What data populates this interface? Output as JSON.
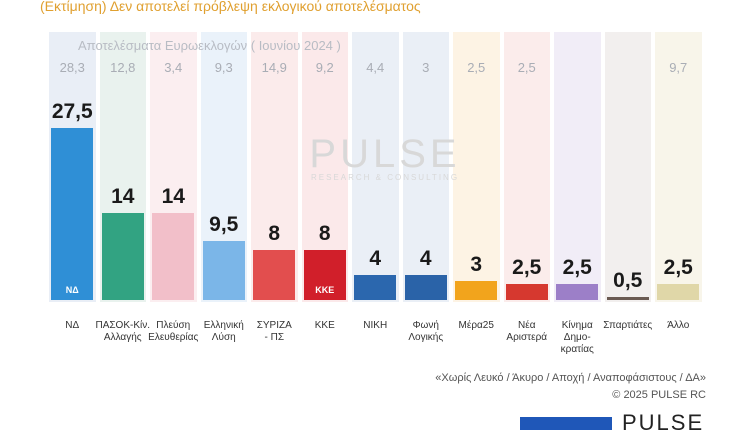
{
  "subtitle": "(Εκτίμηση)   Δεν αποτελεί πρόβλεψη εκλογικού αποτελέσματος",
  "euro_title": "Αποτελέσματα Ευρωεκλογών   ( Ιουνίου 2024 )",
  "watermark": {
    "main": "PULSE",
    "sub": "RESEARCH & CONSULTING"
  },
  "footnote": "«Χωρίς Λευκό / Άκυρο / Αποχή / Αναποφάσιστους / ΔΑ»",
  "copyright": "©  2025  PULSE RC",
  "brand": "PULSE",
  "chart_data": {
    "type": "bar",
    "categories": [
      "ΝΔ",
      "ΠΑΣΟΚ-Κίν. Αλλαγής",
      "Πλεύση Ελευθερίας",
      "Ελληνική Λύση",
      "ΣΥΡΙΖΑ - ΠΣ",
      "ΚΚΕ",
      "ΝΙΚΗ",
      "Φωνή Λογικής",
      "Μέρα25",
      "Νέα Αριστερά",
      "Κίνημα Δημοκρατίας",
      "Σπαρτιάτες",
      "Άλλο"
    ],
    "category_lines": [
      [
        "ΝΔ"
      ],
      [
        "ΠΑΣΟΚ-Κίν.",
        "Αλλαγής"
      ],
      [
        "Πλεύση",
        "Ελευθερίας"
      ],
      [
        "Ελληνική",
        "Λύση"
      ],
      [
        "ΣΥΡΙΖΑ",
        "- ΠΣ"
      ],
      [
        "ΚΚΕ"
      ],
      [
        "ΝΙΚΗ"
      ],
      [
        "Φωνή",
        "Λογικής"
      ],
      [
        "Μέρα25"
      ],
      [
        "Νέα",
        "Αριστερά"
      ],
      [
        "Κίνημα",
        "Δημο-",
        "κρατίας"
      ],
      [
        "Σπαρτιάτες"
      ],
      [
        "Άλλο"
      ]
    ],
    "values": [
      27.5,
      14,
      14,
      9.5,
      8,
      8,
      4,
      4,
      3,
      2.5,
      2.5,
      0.5,
      2.5
    ],
    "value_labels": [
      "27,5",
      "14",
      "14",
      "9,5",
      "8",
      "8",
      "4",
      "4",
      "3",
      "2,5",
      "2,5",
      "0,5",
      "2,5"
    ],
    "euro_values": [
      "28,3",
      "12,8",
      "3,4",
      "9,3",
      "14,9",
      "9,2",
      "4,4",
      "3",
      "2,5",
      "2,5",
      "",
      "",
      "9,7"
    ],
    "colors": [
      "#2f8fd6",
      "#32a382",
      "#f2bfc9",
      "#7bb6e8",
      "#e24e4e",
      "#d11f2a",
      "#2b67ae",
      "#2a63a8",
      "#f2a41c",
      "#d6382f",
      "#9c7fc8",
      "#6a5a52",
      "#e0d7a8"
    ],
    "column_backgrounds": [
      "#e9eef6",
      "#e9f2ee",
      "#fbeef0",
      "#eaf2fa",
      "#fbebeb",
      "#fbe9ea",
      "#eaeff6",
      "#eaeff6",
      "#fdf3e4",
      "#fbeceb",
      "#f1edf7",
      "#f2efee",
      "#f8f5ea"
    ],
    "logos": [
      {
        "name": "nd-logo",
        "text": "ΝΔ",
        "color": "#ffffff"
      },
      {
        "name": "pasok-logo",
        "text": "",
        "color": "#1d7a3f"
      },
      {
        "name": "plefsi-logo",
        "text": "",
        "color": "#7a2f8a"
      },
      {
        "name": "elliniki-lysi-logo",
        "text": "",
        "color": "#2c6fbf"
      },
      {
        "name": "syriza-logo",
        "text": "",
        "color": "#ffffff"
      },
      {
        "name": "kke-logo",
        "text": "ΚΚΕ",
        "color": "#ffffff"
      },
      {
        "name": "niki-logo",
        "text": "",
        "color": "#ffffff"
      },
      {
        "name": "foni-logikis-logo",
        "text": "",
        "color": "#ffffff"
      },
      {
        "name": "mera25-logo",
        "text": "",
        "color": "#c0361f"
      },
      {
        "name": "nea-aristera-logo",
        "text": "",
        "color": "#ffffff"
      },
      {
        "name": "kinima-dimokratias-logo",
        "text": "",
        "color": "#7a4fb0"
      },
      {
        "name": "spartiates-logo",
        "text": "",
        "color": "#d6442b"
      },
      {
        "name": "allo-bar",
        "text": "",
        "color": "#e0d7a8"
      }
    ],
    "ylim": [
      0,
      30
    ],
    "legend": "none",
    "grid": false
  }
}
